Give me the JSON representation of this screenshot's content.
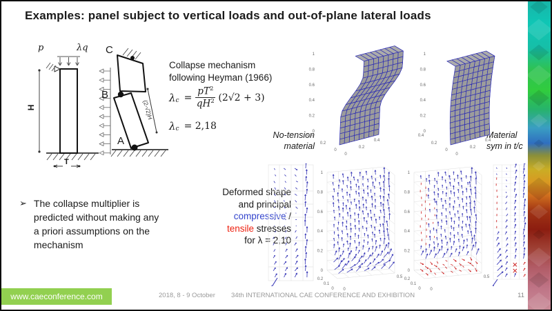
{
  "slide": {
    "title": "Examples: panel subject to vertical loads and out-of-plane lateral loads",
    "page_number": "11"
  },
  "load_diagram": {
    "vertical_load_label": "p",
    "lateral_load_label": "λq",
    "height_label": "H",
    "thickness_label": "T"
  },
  "mechanism_diagram": {
    "hinge_top": "C",
    "hinge_mid": "B",
    "hinge_bottom": "A",
    "dimension_label": "(2-√2)H"
  },
  "collapse_note": {
    "line1": "Collapse mechanism",
    "line2": "following Heyman (1966)"
  },
  "formula": {
    "lambda": "λ",
    "sub": "c",
    "eq": "=",
    "num": "pT",
    "num_sup": "2",
    "den": "qH",
    "den_sup": "2",
    "factor": "(2√2 + 3)"
  },
  "formula_result": {
    "lambda": "λ",
    "sub": "c",
    "value": "= 2,18"
  },
  "labels": {
    "no_tension_line1": "No-tension",
    "no_tension_line2": "material",
    "material_sym_line1": "Material",
    "material_sym_line2": "sym in t/c"
  },
  "bullet": {
    "marker": "➢",
    "text": "The collapse multiplier is predicted without making any a priori assumptions on the mechanism"
  },
  "deformed_caption": {
    "line1": "Deformed shape",
    "line2": "and principal",
    "compressive": "compressive",
    "slash": " /",
    "tensile": "tensile",
    "stresses": " stresses",
    "line5": "for λ = 2,10",
    "compressive_color": "#3344cc",
    "tensile_color": "#ee2211"
  },
  "plots": {
    "mesh_z_ticks": [
      "0",
      "0.2",
      "0.4",
      "0.6",
      "0.8",
      "1"
    ],
    "mesh_x_ticks": [
      "0",
      "0.2",
      "0.4"
    ],
    "mesh_y_ticks": [
      "0.4",
      "0.2",
      "0"
    ],
    "quiver_z_ticks": [
      "0",
      "0.2",
      "0.4",
      "0.6",
      "0.8",
      "1"
    ],
    "quiver_y_ticks": [
      "0.2",
      "0.1",
      "0"
    ],
    "quiver_x_ticks": [
      "0",
      "0.5"
    ],
    "mesh_face_color": "#9c9c9c",
    "mesh_edge_color": "#2b2bb4",
    "arrow_blue": "#3a3ab8",
    "arrow_red": "#cc2020"
  },
  "footer": {
    "website": "www.caeconference.com",
    "date": "2018, 8 - 9 October",
    "conference": "34th INTERNATIONAL CAE CONFERENCE AND EXHIBITION",
    "badge_color": "#92d050"
  }
}
